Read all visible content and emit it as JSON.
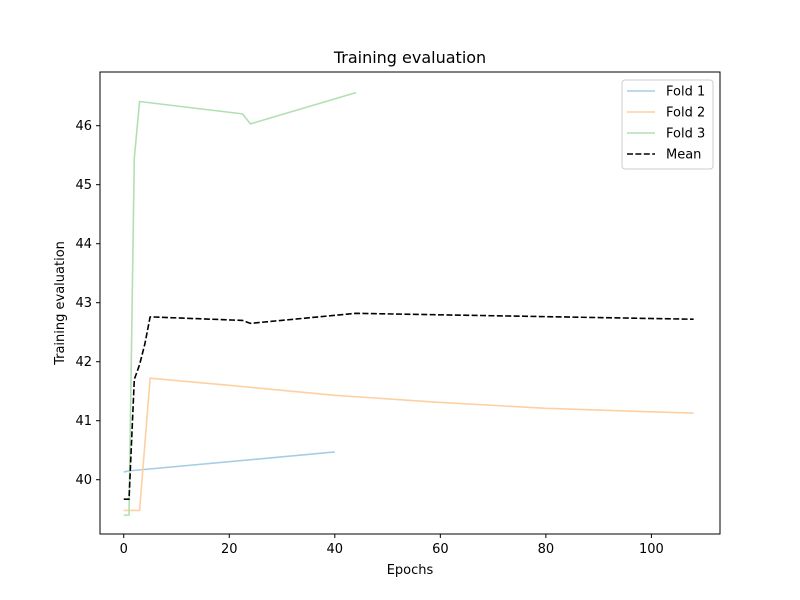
{
  "chart_data": {
    "type": "line",
    "title": "Training evaluation",
    "xlabel": "Epochs",
    "ylabel": "Training evaluation",
    "xlim": [
      -4.5,
      113
    ],
    "ylim": [
      39.08,
      46.91
    ],
    "xticks": [
      0,
      20,
      40,
      60,
      80,
      100
    ],
    "yticks": [
      40,
      41,
      42,
      43,
      44,
      45,
      46
    ],
    "grid": false,
    "legend_position": "top-right",
    "series": [
      {
        "name": "Fold 1",
        "color": "#a6cee3",
        "dash": "solid",
        "x": [
          0,
          1,
          40
        ],
        "y": [
          40.13,
          40.15,
          40.47
        ]
      },
      {
        "name": "Fold 2",
        "color": "#fdd0a2",
        "dash": "solid",
        "x": [
          0,
          1,
          2,
          3,
          5,
          20,
          40,
          60,
          80,
          100,
          108
        ],
        "y": [
          39.48,
          39.48,
          39.48,
          39.48,
          41.72,
          41.6,
          41.43,
          41.31,
          41.21,
          41.15,
          41.13
        ]
      },
      {
        "name": "Fold 3",
        "color": "#b2dfb2",
        "dash": "solid",
        "x": [
          0,
          1,
          2,
          3,
          22.5,
          24,
          44
        ],
        "y": [
          39.4,
          39.4,
          45.45,
          46.41,
          46.2,
          46.03,
          46.56
        ]
      },
      {
        "name": "Mean",
        "color": "#000000",
        "dash": "dashed",
        "x": [
          0,
          1,
          2,
          3,
          4,
          5,
          22.5,
          24,
          44,
          108
        ],
        "y": [
          39.67,
          39.67,
          41.7,
          41.95,
          42.3,
          42.76,
          42.7,
          42.65,
          42.82,
          42.72
        ]
      }
    ]
  }
}
